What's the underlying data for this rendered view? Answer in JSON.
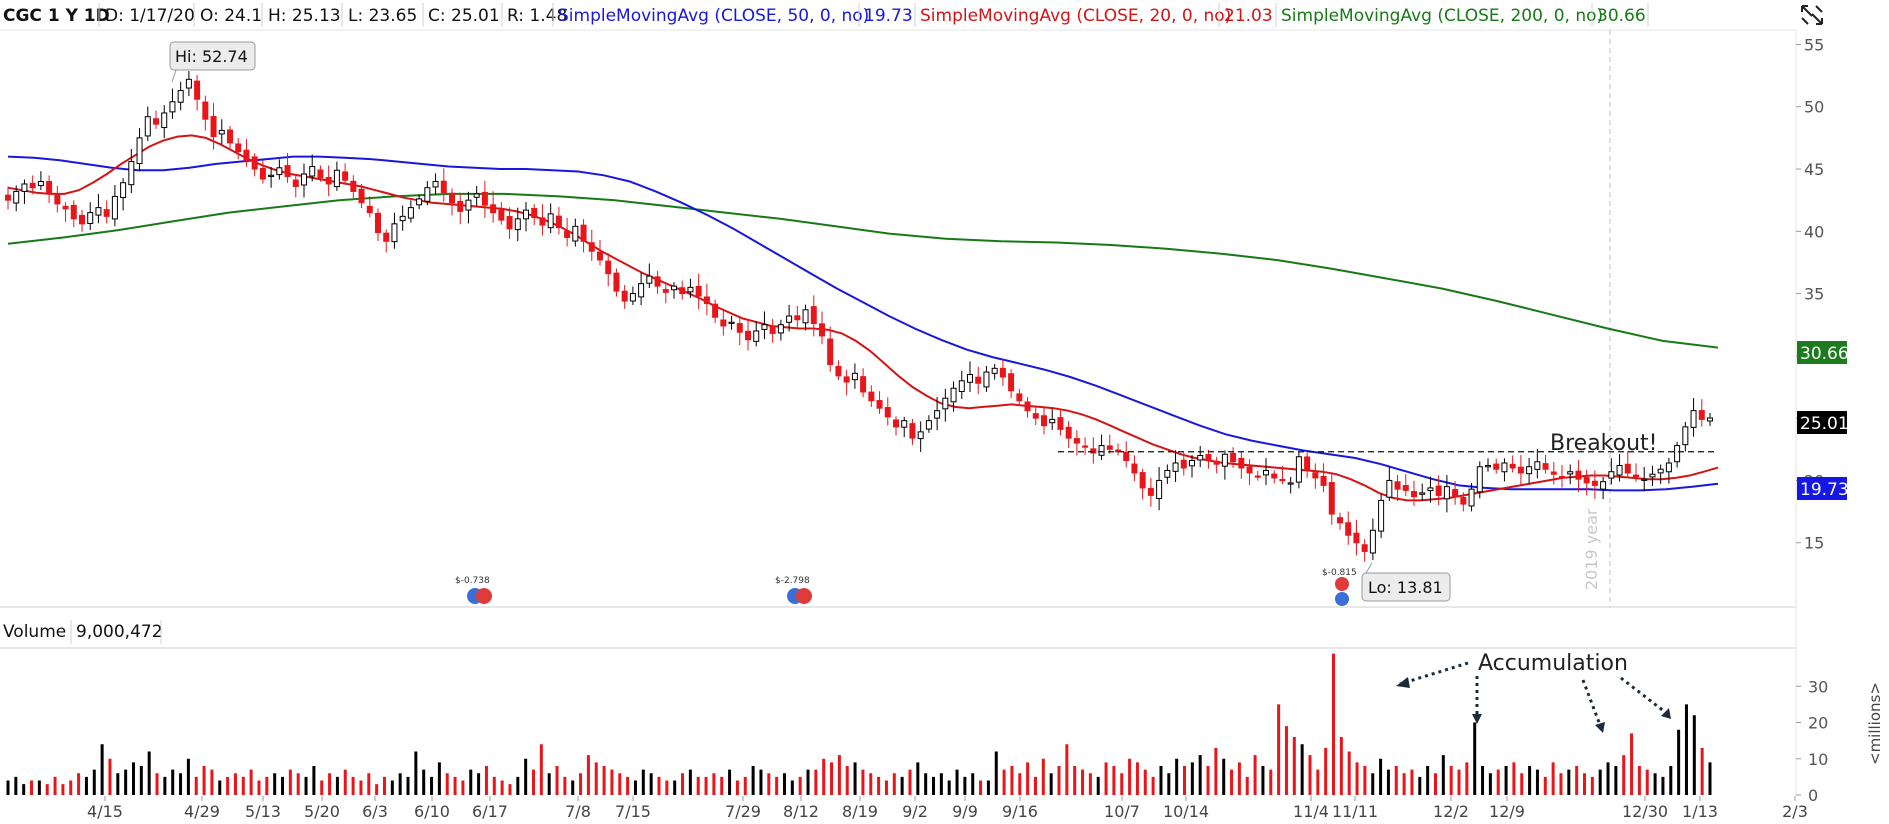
{
  "header": {
    "symbol_label": "CGC 1 Y 1D",
    "date_label": "D: 1/17/20",
    "open_label": "O: 24.1",
    "high_label": "H: 25.13",
    "low_label": "L: 23.65",
    "close_label": "C: 25.01",
    "range_label": "R: 1.48",
    "sma50_label": "SimpleMovingAvg (CLOSE, 50, 0, no)",
    "sma50_value": "19.73",
    "sma20_label": "SimpleMovingAvg (CLOSE, 20, 0, no)",
    "sma20_value": "21.03",
    "sma200_label": "SimpleMovingAvg (CLOSE, 200, 0, no)",
    "sma200_value": "30.66"
  },
  "volume_header": {
    "label": "Volume",
    "value": "9,000,472"
  },
  "annotations": {
    "hi_label": "Hi: 52.74",
    "lo_label": "Lo: 13.81",
    "breakout_label": "Breakout!",
    "accumulation_label": "Accumulation",
    "year_divider_label": "2019 year",
    "millions_label": "<millions>",
    "dividend_1": "$-0.738",
    "dividend_2": "$-2.798",
    "dividend_3": "$-0.815"
  },
  "colors": {
    "up": "#000000",
    "down": "#e8161b",
    "sma20": "#d41414",
    "sma50": "#1717e0",
    "sma200": "#177a17",
    "badge_sma200_bg": "#1d7a1d",
    "badge_sma50_bg": "#1616e6",
    "badge_price_bg": "#000000"
  },
  "chart_data": {
    "type": "candlestick",
    "x_tick_labels": [
      "4/15",
      "4/29",
      "5/13",
      "5/20",
      "6/3",
      "6/10",
      "6/17",
      "7/8",
      "7/15",
      "7/29",
      "8/12",
      "8/19",
      "9/2",
      "9/9",
      "9/16",
      "10/7",
      "10/14",
      "11/4",
      "11/11",
      "12/2",
      "12/9",
      "12/30",
      "1/13",
      "2/3"
    ],
    "price_axis": {
      "min": 10,
      "max": 56,
      "ticks": [
        55,
        50,
        45,
        40,
        35,
        30,
        25,
        20,
        15
      ]
    },
    "volume_axis": {
      "min": 0,
      "max": 40,
      "ticks": [
        30,
        20,
        10,
        0
      ],
      "unit": "<millions>"
    },
    "breakout_level": 22.3,
    "hi": 52.74,
    "lo": 13.81,
    "last_close": 25.01,
    "sma_latest": {
      "sma20": 21.03,
      "sma50": 19.73,
      "sma200": 30.66
    },
    "price_badges": [
      "30.66",
      "25.01",
      "19.73"
    ],
    "close_series": [
      42.5,
      43.2,
      43.8,
      43.5,
      44.0,
      43.1,
      42.2,
      41.8,
      41.0,
      40.6,
      41.5,
      41.9,
      41.2,
      42.8,
      43.9,
      45.6,
      47.5,
      49.2,
      48.6,
      49.5,
      50.4,
      51.3,
      52.2,
      50.6,
      49.0,
      47.6,
      48.1,
      47.1,
      46.4,
      45.7,
      45.0,
      44.2,
      44.5,
      45.1,
      44.4,
      43.6,
      44.6,
      45.2,
      44.3,
      43.8,
      44.9,
      44.1,
      43.2,
      42.3,
      41.5,
      39.9,
      39.2,
      40.6,
      41.2,
      41.9,
      42.6,
      43.5,
      44.0,
      43.1,
      42.3,
      41.6,
      42.5,
      43.0,
      42.1,
      41.5,
      40.9,
      40.2,
      41.0,
      41.7,
      41.1,
      40.5,
      41.4,
      40.3,
      39.5,
      40.4,
      39.2,
      38.4,
      37.7,
      36.6,
      35.2,
      34.4,
      35.0,
      35.8,
      36.4,
      35.6,
      35.1,
      35.6,
      35.0,
      35.5,
      34.8,
      34.2,
      33.1,
      32.4,
      32.7,
      31.9,
      31.3,
      32.0,
      32.5,
      31.8,
      32.5,
      33.2,
      32.9,
      33.7,
      32.6,
      31.6,
      29.3,
      28.4,
      27.9,
      28.6,
      27.1,
      26.4,
      25.8,
      25.1,
      24.3,
      24.8,
      23.4,
      23.9,
      24.8,
      25.6,
      26.6,
      27.4,
      28.0,
      28.5,
      27.8,
      28.7,
      29.0,
      28.3,
      27.2,
      26.4,
      25.6,
      25.0,
      24.4,
      24.9,
      24.1,
      23.4,
      23.0,
      22.7,
      22.2,
      22.8,
      22.5,
      22.3,
      21.6,
      20.6,
      19.4,
      18.8,
      20.0,
      20.8,
      21.4,
      21.0,
      21.6,
      22.0,
      21.6,
      21.3,
      22.1,
      21.5,
      21.0,
      20.6,
      20.3,
      20.8,
      20.2,
      20.0,
      19.8,
      21.9,
      20.9,
      20.2,
      19.6,
      17.3,
      16.6,
      15.6,
      15.0,
      14.3,
      16.0,
      18.4,
      20.0,
      19.3,
      19.2,
      18.7,
      19.0,
      19.4,
      18.8,
      19.5,
      18.7,
      18.1,
      19.3,
      21.1,
      21.2,
      20.9,
      21.4,
      21.0,
      20.6,
      21.1,
      21.5,
      20.9,
      20.5,
      20.3,
      20.7,
      20.1,
      19.8,
      19.6,
      19.9,
      20.7,
      21.2,
      20.6,
      20.3,
      20.1,
      20.5,
      20.9,
      21.4,
      22.8,
      24.3,
      25.6,
      24.9,
      25.01
    ],
    "sma20_series": [
      43.5,
      43.3,
      43.1,
      43.0,
      43.0,
      43.3,
      43.9,
      44.6,
      45.4,
      46.1,
      46.8,
      47.3,
      47.6,
      47.7,
      47.5,
      47.0,
      46.4,
      45.8,
      45.3,
      44.9,
      44.6,
      44.4,
      44.2,
      44.0,
      43.8,
      43.6,
      43.3,
      43.0,
      42.7,
      42.5,
      42.3,
      42.2,
      42.1,
      42.0,
      41.9,
      41.8,
      41.6,
      41.3,
      40.9,
      40.4,
      39.8,
      39.1,
      38.4,
      37.8,
      37.2,
      36.6,
      36.1,
      35.6,
      35.1,
      34.6,
      34.0,
      33.5,
      33.0,
      32.7,
      32.4,
      32.3,
      32.2,
      32.2,
      32.1,
      31.8,
      31.2,
      30.4,
      29.4,
      28.4,
      27.5,
      26.8,
      26.2,
      25.9,
      25.8,
      25.9,
      26.0,
      26.1,
      26.0,
      25.9,
      25.8,
      25.6,
      25.3,
      24.9,
      24.4,
      23.9,
      23.4,
      22.9,
      22.5,
      22.1,
      21.8,
      21.6,
      21.4,
      21.3,
      21.2,
      21.1,
      21.0,
      20.9,
      20.8,
      20.7,
      20.5,
      20.1,
      19.6,
      19.0,
      18.6,
      18.4,
      18.4,
      18.5,
      18.6,
      18.8,
      19.0,
      19.2,
      19.4,
      19.6,
      19.8,
      20.0,
      20.2,
      20.3,
      20.4,
      20.4,
      20.3,
      20.2,
      20.1,
      20.1,
      20.2,
      20.4,
      20.7,
      21.03
    ],
    "sma50_series": [
      46.0,
      45.9,
      45.7,
      45.4,
      45.1,
      44.9,
      44.9,
      45.1,
      45.4,
      45.6,
      45.8,
      46.0,
      46.0,
      45.9,
      45.8,
      45.6,
      45.4,
      45.2,
      45.1,
      45.0,
      45.0,
      44.9,
      44.8,
      44.5,
      44.0,
      43.2,
      42.3,
      41.3,
      40.2,
      39.0,
      37.8,
      36.6,
      35.4,
      34.3,
      33.2,
      32.2,
      31.3,
      30.5,
      29.9,
      29.4,
      28.9,
      28.3,
      27.6,
      26.8,
      26.0,
      25.2,
      24.4,
      23.7,
      23.2,
      22.8,
      22.4,
      22.1,
      21.8,
      21.3,
      20.7,
      20.1,
      19.6,
      19.4,
      19.3,
      19.3,
      19.3,
      19.3,
      19.2,
      19.2,
      19.3,
      19.5,
      19.73
    ],
    "sma200_series": [
      39.0,
      39.5,
      40.1,
      40.8,
      41.5,
      42.0,
      42.5,
      42.8,
      43.0,
      43.0,
      42.8,
      42.5,
      42.0,
      41.5,
      41.0,
      40.4,
      39.8,
      39.4,
      39.2,
      39.1,
      38.9,
      38.6,
      38.2,
      37.7,
      37.0,
      36.2,
      35.4,
      34.4,
      33.3,
      32.2,
      31.2,
      30.66
    ],
    "volume_series": [
      4,
      5,
      3,
      4,
      4,
      3,
      5,
      3,
      4,
      6,
      5,
      7,
      14,
      10,
      6,
      7,
      9,
      8,
      12,
      6,
      5,
      7,
      6,
      10,
      5,
      8,
      7,
      4,
      5,
      6,
      5,
      7,
      4,
      5,
      6,
      5,
      7,
      6,
      5,
      8,
      4,
      6,
      5,
      7,
      5,
      4,
      6,
      3,
      5,
      4,
      6,
      5,
      12,
      7,
      5,
      9,
      6,
      5,
      4,
      7,
      6,
      8,
      5,
      4,
      3,
      5,
      10,
      7,
      14,
      6,
      8,
      5,
      4,
      6,
      11,
      9,
      8,
      7,
      6,
      5,
      4,
      7,
      6,
      5,
      4,
      4,
      6,
      7,
      5,
      5,
      6,
      5,
      7,
      4,
      5,
      8,
      7,
      6,
      5,
      6,
      4,
      5,
      7,
      7,
      10,
      9,
      11,
      8,
      9,
      7,
      6,
      5,
      4,
      6,
      5,
      7,
      9,
      6,
      5,
      6,
      4,
      7,
      5,
      6,
      4,
      4,
      12,
      7,
      8,
      6,
      9,
      5,
      10,
      6,
      8,
      14,
      8,
      7,
      6,
      5,
      9,
      8,
      6,
      10,
      9,
      7,
      5,
      8,
      6,
      10,
      8,
      9,
      11,
      8,
      13,
      10,
      7,
      9,
      5,
      11,
      8,
      7,
      25,
      19,
      16,
      14,
      11,
      7,
      13,
      39,
      16,
      12,
      9,
      8,
      6,
      10,
      7,
      8,
      6,
      7,
      5,
      8,
      6,
      11,
      8,
      7,
      9,
      20,
      8,
      6,
      7,
      8,
      9,
      6,
      8,
      7,
      5,
      9,
      6,
      7,
      8,
      6,
      5,
      7,
      9,
      8,
      11,
      17,
      8,
      7,
      6,
      5,
      8,
      18,
      25,
      22,
      13,
      9
    ]
  }
}
